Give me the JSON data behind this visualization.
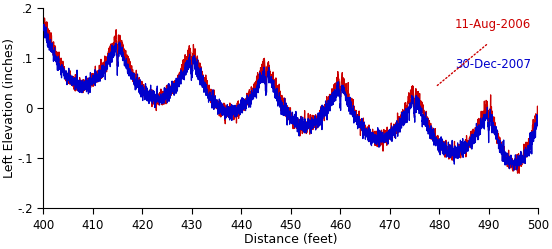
{
  "title": "",
  "xlabel": "Distance (feet)",
  "ylabel": "Left Elevation (inches)",
  "xlim": [
    400,
    500
  ],
  "ylim": [
    -0.2,
    0.2
  ],
  "xticks": [
    400,
    410,
    420,
    430,
    440,
    450,
    460,
    470,
    480,
    490,
    500
  ],
  "yticks": [
    -0.2,
    -0.1,
    0,
    0.1,
    0.2
  ],
  "legend_labels": [
    "11-Aug-2006",
    "30-Dec-2007"
  ],
  "legend_colors": [
    "#cc0000",
    "#0000cc"
  ],
  "slab_joints": [
    400,
    415,
    430,
    445,
    460,
    475,
    490,
    500
  ],
  "visit12_curl": 0.12,
  "visit13_curl": 0.1,
  "noise_std": 0.008,
  "background_color": "#ffffff",
  "linewidth_v12": 0.9,
  "linewidth_v13": 0.9
}
